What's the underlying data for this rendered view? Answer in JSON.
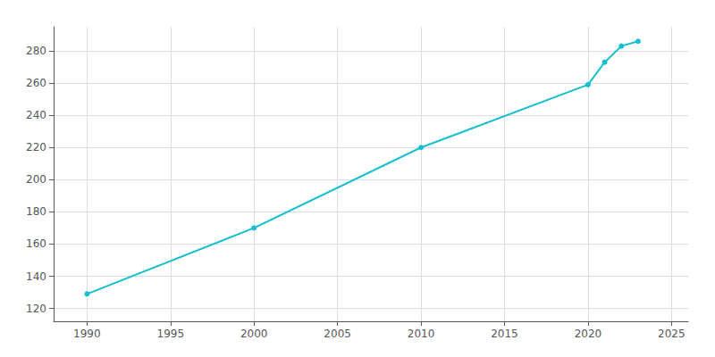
{
  "chart_data": {
    "type": "line",
    "x": [
      1990,
      2000,
      2010,
      2020,
      2021,
      2022,
      2023
    ],
    "values": [
      129,
      170,
      220,
      259,
      273,
      283,
      286
    ],
    "color": "#17BECF",
    "marker": "circle",
    "xlim": [
      1988,
      2026
    ],
    "ylim": [
      112,
      295
    ],
    "xticks": [
      1990,
      1995,
      2000,
      2005,
      2010,
      2015,
      2020,
      2025
    ],
    "yticks": [
      120,
      140,
      160,
      180,
      200,
      220,
      240,
      260,
      280
    ],
    "grid": true
  }
}
